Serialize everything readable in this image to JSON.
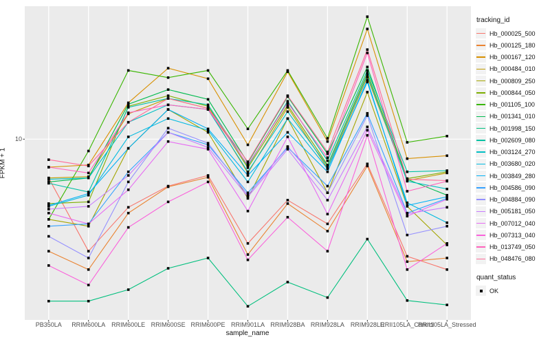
{
  "figure": {
    "xlabel": "sample_name",
    "ylabel": "FPKM + 1",
    "y_tick_label": "10",
    "legend1_title": "tracking_id",
    "legend2_title": "quant_status",
    "quant_status_label": "OK"
  },
  "chart_data": {
    "type": "line",
    "title": "",
    "xlabel": "sample_name",
    "ylabel": "FPKM + 1",
    "y_scale": "log10",
    "ylim": [
      1,
      54.4
    ],
    "y_tick_labels": [
      "10"
    ],
    "grid": true,
    "panel_bg": "#EBEBEB",
    "grid_color": "#FFFFFF",
    "legend_position": "right",
    "point_shape": "filled-square",
    "point_color": "#000000",
    "quant_status": "OK",
    "categories": [
      "PB350LA",
      "RRIM600LA",
      "RRIM600LE",
      "RRIM600SE",
      "RRIM600PE",
      "RRIM901LA",
      "RRIM928BA",
      "RRIM928LA",
      "RRIM928LE",
      "RRII105LA_Control",
      "RRII105LA_Stressed"
    ],
    "series": [
      {
        "name": "Hb_000025_500",
        "color": "#F8766D",
        "values": [
          6.1,
          2.4,
          4.2,
          5.5,
          6.3,
          2.65,
          4.6,
          3.4,
          7.3,
          2.25,
          1.9
        ]
      },
      {
        "name": "Hb_000125_180",
        "color": "#EA8331",
        "values": [
          2.4,
          1.9,
          3.9,
          5.45,
          6.15,
          2.3,
          4.4,
          3.1,
          7.1,
          2.1,
          2.2
        ]
      },
      {
        "name": "Hb_000167_120",
        "color": "#D89000",
        "values": [
          7.0,
          7.2,
          15.9,
          24.7,
          21.6,
          9.3,
          23.6,
          9.7,
          40.7,
          7.8,
          8.1
        ]
      },
      {
        "name": "Hb_000484_010",
        "color": "#C09B00",
        "values": [
          6.1,
          6.2,
          13.8,
          16.8,
          14.8,
          6.5,
          15.0,
          6.9,
          22.0,
          5.9,
          6.5
        ]
      },
      {
        "name": "Hb_000809_250",
        "color": "#A3A500",
        "values": [
          3.6,
          3.3,
          8.9,
          14.6,
          10.9,
          4.7,
          13.0,
          5.05,
          18.2,
          4.25,
          2.6
        ]
      },
      {
        "name": "Hb_000844_050",
        "color": "#7CAE00",
        "values": [
          4.4,
          4.5,
          15.2,
          17.4,
          15.2,
          6.95,
          15.4,
          7.2,
          23.2,
          6.05,
          6.6
        ]
      },
      {
        "name": "Hb_001105_100",
        "color": "#39B600",
        "values": [
          3.6,
          8.6,
          24.0,
          21.9,
          24.0,
          11.4,
          24.0,
          10.1,
          47.6,
          9.6,
          10.4
        ]
      },
      {
        "name": "Hb_001341_010",
        "color": "#00BB4E",
        "values": [
          5.8,
          6.1,
          15.6,
          18.8,
          16.6,
          7.4,
          17.2,
          8.3,
          25.1,
          6.0,
          4.9
        ]
      },
      {
        "name": "Hb_001998_150",
        "color": "#00BF7D",
        "values": [
          1.27,
          1.27,
          1.47,
          1.93,
          2.2,
          1.19,
          1.62,
          1.33,
          2.8,
          1.28,
          1.21
        ]
      },
      {
        "name": "Hb_002609_080",
        "color": "#00C1A3",
        "values": [
          5.7,
          5.1,
          15.0,
          16.8,
          15.5,
          7.1,
          16.2,
          7.6,
          24.0,
          6.6,
          6.7
        ]
      },
      {
        "name": "Hb_003124_270",
        "color": "#00BFC4",
        "values": [
          6.0,
          6.1,
          12.4,
          15.5,
          14.6,
          6.6,
          14.2,
          7.1,
          22.6,
          5.85,
          5.3
        ]
      },
      {
        "name": "Hb_003680_020",
        "color": "#00BAE0",
        "values": [
          4.25,
          4.9,
          10.3,
          13.0,
          11.2,
          5.8,
          13.0,
          6.85,
          20.7,
          4.45,
          3.45
        ]
      },
      {
        "name": "Hb_003849_280",
        "color": "#00B0F6",
        "values": [
          4.3,
          5.0,
          8.9,
          14.6,
          11.4,
          6.3,
          10.9,
          6.6,
          21.2,
          4.3,
          4.8
        ]
      },
      {
        "name": "Hb_004586_090",
        "color": "#35A2FF",
        "values": [
          3.3,
          3.4,
          6.6,
          10.9,
          9.3,
          5.05,
          9.0,
          5.5,
          13.9,
          3.9,
          4.7
        ]
      },
      {
        "name": "Hb_004884_090",
        "color": "#9590FF",
        "values": [
          2.9,
          2.2,
          5.8,
          11.5,
          9.5,
          4.9,
          9.1,
          5.05,
          13.5,
          2.95,
          3.3
        ]
      },
      {
        "name": "Hb_005181_050",
        "color": "#C77CFF",
        "values": [
          4.1,
          4.25,
          6.3,
          10.9,
          9.0,
          4.8,
          8.8,
          4.6,
          11.7,
          3.87,
          4.2
        ]
      },
      {
        "name": "Hb_007012_040",
        "color": "#E76BF3",
        "values": [
          3.9,
          3.4,
          5.25,
          9.7,
          8.8,
          4.0,
          10.3,
          3.85,
          11.2,
          3.75,
          4.65
        ]
      },
      {
        "name": "Hb_007313_040",
        "color": "#FA62DB",
        "values": [
          2.0,
          1.56,
          3.25,
          4.5,
          5.8,
          2.15,
          3.7,
          2.4,
          10.5,
          1.9,
          2.65
        ]
      },
      {
        "name": "Hb_013749_050",
        "color": "#FF62BC",
        "values": [
          7.0,
          6.5,
          14.0,
          15.5,
          14.6,
          7.2,
          15.9,
          7.9,
          30.0,
          5.15,
          5.85
        ]
      },
      {
        "name": "Hb_048476_080",
        "color": "#FF6A98",
        "values": [
          7.7,
          7.1,
          12.4,
          16.8,
          14.8,
          7.5,
          17.4,
          8.5,
          31.3,
          6.0,
          5.9
        ]
      }
    ]
  }
}
